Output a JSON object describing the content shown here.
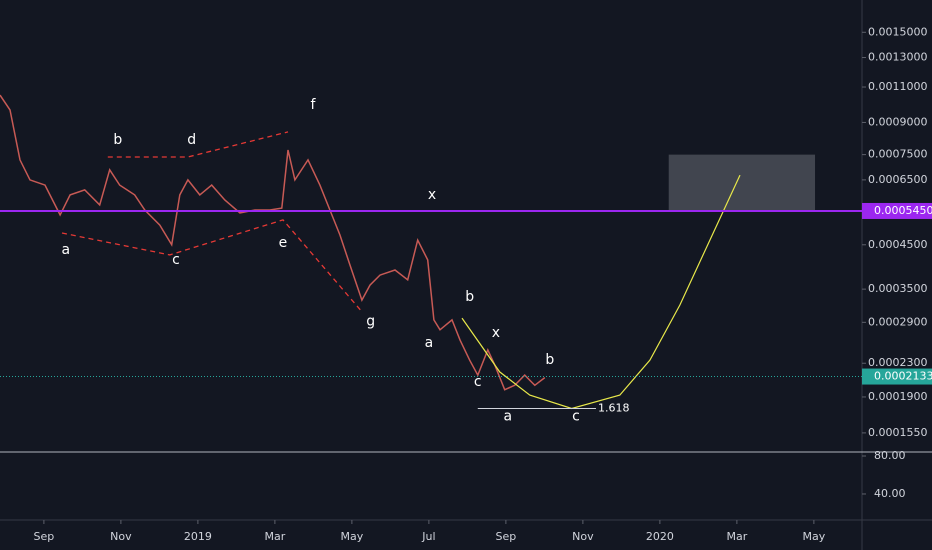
{
  "chart_data": {
    "type": "line",
    "x": [
      -1.14,
      -0.88,
      -0.62,
      -0.36,
      0.03,
      0.42,
      0.68,
      1.06,
      1.45,
      1.71,
      1.97,
      2.36,
      2.62,
      3.01,
      3.32,
      3.53,
      3.74,
      4.05,
      4.36,
      4.7,
      5.09,
      5.48,
      5.87,
      6.18,
      6.34,
      6.52,
      6.86,
      7.17,
      7.43,
      7.69,
      7.95,
      8.26,
      8.47,
      8.73,
      9.12,
      9.45,
      9.71,
      9.97,
      10.13,
      10.29,
      10.6,
      10.81,
      11.06,
      11.27,
      11.53,
      11.71,
      11.97,
      12.23,
      12.49,
      12.75,
      13.01
    ],
    "series": [
      {
        "color": "#c75a55",
        "values": [
          0.001051,
          0.000966,
          0.000728,
          0.00065,
          0.000631,
          0.000533,
          0.000597,
          0.000614,
          0.000564,
          0.000688,
          0.000631,
          0.000597,
          0.000548,
          0.000503,
          0.00045,
          0.000597,
          0.00065,
          0.000597,
          0.000631,
          0.00058,
          0.000539,
          0.000548,
          0.000548,
          0.000554,
          0.00077,
          0.00065,
          0.000728,
          0.000631,
          0.000548,
          0.000476,
          0.000401,
          0.000329,
          0.000358,
          0.000379,
          0.00039,
          0.000369,
          0.000462,
          0.000413,
          0.000294,
          0.000278,
          0.000294,
          0.000262,
          0.000234,
          0.000215,
          0.000248,
          0.000228,
          0.000198,
          0.000203,
          0.000215,
          0.000203,
          0.000212
        ]
      }
    ],
    "xlim": [
      -1.14,
      21.25
    ],
    "xticks": [
      {
        "value": 0,
        "label": "Sep"
      },
      {
        "value": 2,
        "label": "Nov"
      },
      {
        "value": 4,
        "label": "2019"
      },
      {
        "value": 6,
        "label": "Mar"
      },
      {
        "value": 8,
        "label": "May"
      },
      {
        "value": 10,
        "label": "Jul"
      },
      {
        "value": 12,
        "label": "Sep"
      },
      {
        "value": 14,
        "label": "Nov"
      },
      {
        "value": 16,
        "label": "2020"
      },
      {
        "value": 18,
        "label": "Mar"
      },
      {
        "value": 20,
        "label": "May"
      }
    ],
    "ylim": [
      0.0001391,
      0.001801
    ],
    "log_scale": true,
    "grid": false,
    "yticks": [
      {
        "value": 0.0015,
        "label": "0.0015000"
      },
      {
        "value": 0.0013,
        "label": "0.0013000"
      },
      {
        "value": 0.0011,
        "label": "0.0011000"
      },
      {
        "value": 0.0009,
        "label": "0.0009000"
      },
      {
        "value": 0.00075,
        "label": "0.0007500"
      },
      {
        "value": 0.00065,
        "label": "0.0006500"
      },
      {
        "value": 0.00045,
        "label": "0.0004500"
      },
      {
        "value": 0.00035,
        "label": "0.0003500"
      },
      {
        "value": 0.00029,
        "label": "0.0002900"
      },
      {
        "value": 0.00023,
        "label": "0.0002300"
      },
      {
        "value": 0.00019,
        "label": "0.0001900"
      },
      {
        "value": 0.000155,
        "label": "0.0001550"
      }
    ],
    "levels": [
      {
        "value": 0.000545,
        "label": "0.0005450",
        "color": "#9c27f0",
        "style": "solid"
      },
      {
        "value": 0.0002133,
        "label": "0.0002133",
        "color": "#26a69a",
        "style": "dotted"
      }
    ],
    "box": {
      "x": [
        16.23,
        20.03
      ],
      "y": [
        0.000545,
        0.00075
      ],
      "color": "#4a4d57"
    },
    "wave_lines": [
      {
        "color": "#e53935",
        "x": [
          0.47,
          3.27,
          6.21,
          8.26
        ],
        "y": [
          0.000481,
          0.000425,
          0.000518,
          0.000308
        ]
      },
      {
        "color": "#e53935",
        "x": [
          1.66,
          3.74,
          6.34
        ],
        "y": [
          0.00074,
          0.00074,
          0.000853
        ]
      }
    ],
    "projection": {
      "color": "#e8e84a",
      "x": [
        10.86,
        11.84,
        12.62,
        13.71,
        14.96,
        15.74,
        16.52,
        17.3,
        18.08
      ],
      "y": [
        0.000297,
        0.000219,
        0.000192,
        0.000178,
        0.000192,
        0.000234,
        0.00032,
        0.000462,
        0.000668
      ]
    },
    "fib": {
      "label": "1.618",
      "x": [
        11.27,
        14.34
      ],
      "y": 0.000178
    },
    "annotations": [
      {
        "text": "a",
        "x": 0.57,
        "y": 0.000437
      },
      {
        "text": "b",
        "x": 1.92,
        "y": 0.000815
      },
      {
        "text": "c",
        "x": 3.43,
        "y": 0.000413
      },
      {
        "text": "d",
        "x": 3.84,
        "y": 0.000815
      },
      {
        "text": "e",
        "x": 6.21,
        "y": 0.000455
      },
      {
        "text": "f",
        "x": 6.99,
        "y": 0.000994
      },
      {
        "text": "g",
        "x": 8.49,
        "y": 0.000291
      },
      {
        "text": "x",
        "x": 10.08,
        "y": 0.000597
      },
      {
        "text": "a",
        "x": 10.0,
        "y": 0.000258
      },
      {
        "text": "b",
        "x": 11.06,
        "y": 0.000335
      },
      {
        "text": "x",
        "x": 11.74,
        "y": 0.000273
      },
      {
        "text": "c",
        "x": 11.27,
        "y": 0.000207
      },
      {
        "text": "b",
        "x": 13.14,
        "y": 0.000234
      },
      {
        "text": "a",
        "x": 12.05,
        "y": 0.00017
      },
      {
        "text": "c",
        "x": 13.82,
        "y": 0.00017
      }
    ],
    "indicator": {
      "ylim": [
        12.6,
        84.2
      ],
      "yticks": [
        {
          "value": 80,
          "label": "80.00"
        },
        {
          "value": 40,
          "label": "40.00"
        }
      ]
    }
  }
}
